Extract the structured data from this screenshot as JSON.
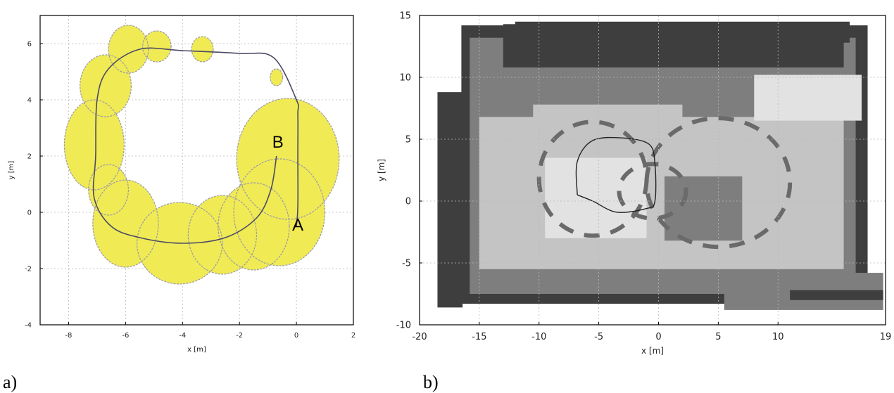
{
  "panels": [
    {
      "label": "a)",
      "chart_data": {
        "type": "scatter",
        "xlabel": "x [m]",
        "ylabel": "y [m]",
        "xlim": [
          -9,
          2
        ],
        "ylim": [
          -4,
          7
        ],
        "xticks": [
          -8,
          -6,
          -4,
          -2,
          0,
          2
        ],
        "yticks": [
          -4,
          -2,
          0,
          2,
          4,
          6
        ],
        "grid": true,
        "colors": {
          "ellipse_fill": "#f0ea55",
          "ellipse_edge": "#9a9aa8",
          "path": "#4a4a66",
          "frame": "#000000"
        },
        "uncertainty_ellipses": [
          {
            "cx": -5.9,
            "cy": 5.8,
            "rx": 0.7,
            "ry": 0.85
          },
          {
            "cx": -4.9,
            "cy": 5.9,
            "rx": 0.5,
            "ry": 0.55
          },
          {
            "cx": -3.3,
            "cy": 5.8,
            "rx": 0.38,
            "ry": 0.45
          },
          {
            "cx": -0.7,
            "cy": 4.8,
            "rx": 0.22,
            "ry": 0.3
          },
          {
            "cx": -6.7,
            "cy": 4.5,
            "rx": 0.9,
            "ry": 1.1
          },
          {
            "cx": -7.1,
            "cy": 2.4,
            "rx": 1.05,
            "ry": 1.6
          },
          {
            "cx": -6.6,
            "cy": 0.8,
            "rx": 0.7,
            "ry": 0.9
          },
          {
            "cx": -6.0,
            "cy": -0.4,
            "rx": 1.15,
            "ry": 1.55
          },
          {
            "cx": -4.1,
            "cy": -1.1,
            "rx": 1.5,
            "ry": 1.45
          },
          {
            "cx": -2.6,
            "cy": -0.8,
            "rx": 1.2,
            "ry": 1.4
          },
          {
            "cx": -1.5,
            "cy": -0.5,
            "rx": 1.25,
            "ry": 1.55
          },
          {
            "cx": -0.6,
            "cy": 0.0,
            "rx": 1.6,
            "ry": 1.9
          },
          {
            "cx": -0.3,
            "cy": 1.9,
            "rx": 1.8,
            "ry": 2.15
          }
        ],
        "path": [
          [
            0.0,
            -0.5
          ],
          [
            0.05,
            0.2
          ],
          [
            0.05,
            2.0
          ],
          [
            0.05,
            3.5
          ],
          [
            0.0,
            4.0
          ],
          [
            -0.8,
            5.5
          ],
          [
            -2.0,
            5.65
          ],
          [
            -4.0,
            5.75
          ],
          [
            -5.5,
            5.8
          ],
          [
            -6.6,
            5.1
          ],
          [
            -7.0,
            4.0
          ],
          [
            -7.05,
            2.0
          ],
          [
            -7.1,
            0.5
          ],
          [
            -6.5,
            -0.5
          ],
          [
            -5.5,
            -0.9
          ],
          [
            -4.0,
            -1.1
          ],
          [
            -2.5,
            -0.9
          ],
          [
            -1.4,
            -0.2
          ],
          [
            -0.9,
            0.8
          ],
          [
            -0.7,
            2.0
          ]
        ],
        "annotations": [
          {
            "text": "B",
            "x": -0.65,
            "y": 2.3
          },
          {
            "text": "A",
            "x": 0.05,
            "y": -0.65
          }
        ]
      }
    },
    {
      "label": "b)",
      "chart_data": {
        "type": "heatmap",
        "xlabel": "x [m]",
        "ylabel": "y [m]",
        "xlim": [
          -20,
          19
        ],
        "ylim": [
          -10,
          15
        ],
        "xticks": [
          -20,
          -15,
          -10,
          -5,
          0,
          5,
          10,
          19
        ],
        "yticks": [
          -10,
          -5,
          0,
          5,
          10,
          15
        ],
        "grid": true,
        "colors": {
          "dark": "#3e3e3e",
          "mid": "#7e7e7e",
          "light": "#c4c4c4",
          "lighter": "#e2e2e2",
          "path": "#222222"
        },
        "map_regions": [
          {
            "shade": "dark",
            "x0": -16.5,
            "y0": -8.3,
            "x1": 17.5,
            "y1": 14.2
          },
          {
            "shade": "mid",
            "x0": -15.8,
            "y0": -7.5,
            "x1": 16.5,
            "y1": 13.2
          },
          {
            "shade": "light",
            "x0": -15.0,
            "y0": -5.5,
            "x1": 15.5,
            "y1": 6.8
          },
          {
            "shade": "lighter",
            "x0": -9.5,
            "y0": -3.0,
            "x1": -1.0,
            "y1": 3.5
          },
          {
            "shade": "mid",
            "x0": 0.5,
            "y0": -3.2,
            "x1": 7.0,
            "y1": 2.0
          },
          {
            "shade": "light",
            "x0": -10.5,
            "y0": 3.5,
            "x1": 2.0,
            "y1": 7.8
          },
          {
            "shade": "lighter",
            "x0": 8.0,
            "y0": 6.5,
            "x1": 17.0,
            "y1": 10.2
          },
          {
            "shade": "dark",
            "x0": -18.5,
            "y0": -8.6,
            "x1": -16.4,
            "y1": 8.8
          },
          {
            "shade": "dark",
            "x0": -13.0,
            "y0": 10.8,
            "x1": 15.5,
            "y1": 14.3
          },
          {
            "shade": "dark",
            "x0": -12.0,
            "y0": 12.8,
            "x1": 16.0,
            "y1": 14.5
          },
          {
            "shade": "mid",
            "x0": 5.5,
            "y0": -8.8,
            "x1": 18.8,
            "y1": -5.8
          },
          {
            "shade": "dark",
            "x0": 11.0,
            "y0": -8.0,
            "x1": 18.8,
            "y1": -7.2
          }
        ],
        "path": [
          [
            -6.8,
            0.5
          ],
          [
            -6.8,
            3.2
          ],
          [
            -5.5,
            4.9
          ],
          [
            -3.0,
            5.1
          ],
          [
            -0.8,
            4.6
          ],
          [
            -0.3,
            3.0
          ],
          [
            -0.3,
            0.0
          ],
          [
            -1.0,
            -0.6
          ],
          [
            -3.5,
            -0.9
          ],
          [
            -5.5,
            0.0
          ],
          [
            -6.8,
            0.5
          ]
        ],
        "arcs": [
          {
            "cx": -5.5,
            "cy": 1.8,
            "rx": 4.5,
            "ry": 4.6
          },
          {
            "cx": 5.0,
            "cy": 1.5,
            "rx": 6.0,
            "ry": 5.2
          },
          {
            "cx": -0.5,
            "cy": 0.8,
            "rx": 2.8,
            "ry": 2.2
          }
        ]
      }
    }
  ]
}
